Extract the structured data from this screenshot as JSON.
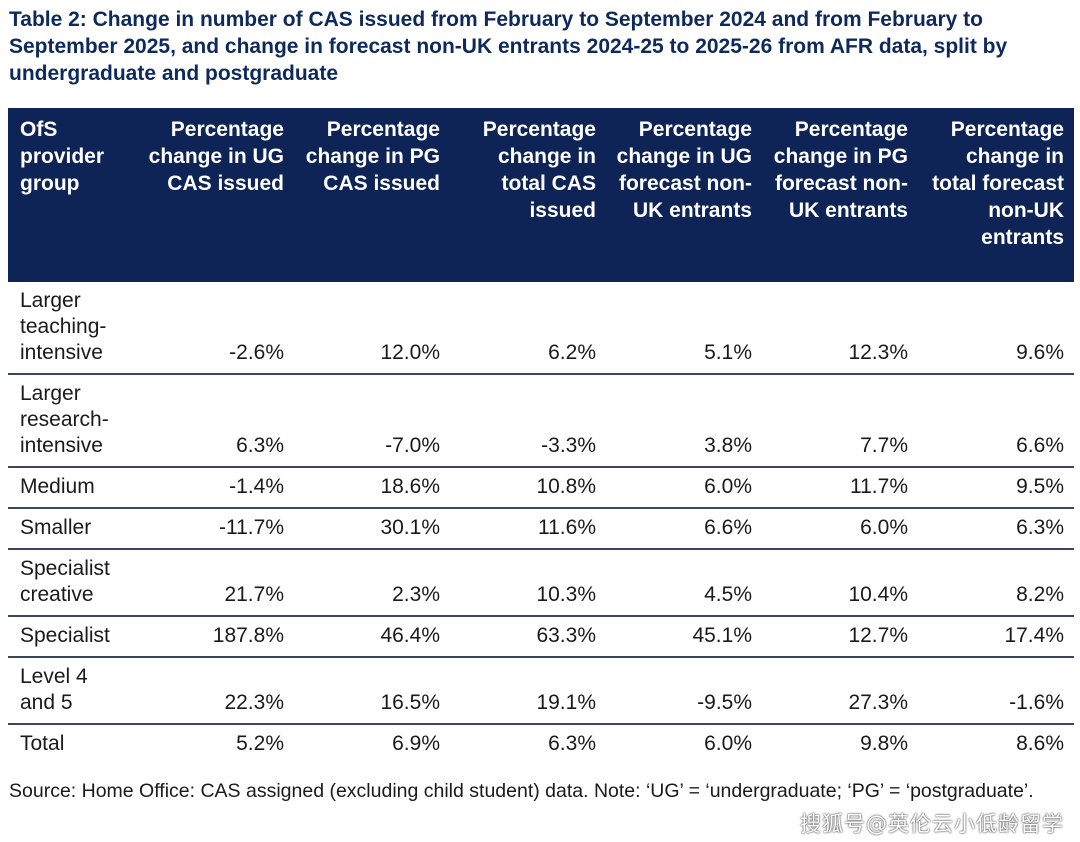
{
  "title": "Table 2: Change in number of CAS issued from February to September 2024 and from February to September 2025, and change in forecast non-UK entrants 2024-25 to 2025-26 from AFR data, split by undergraduate and postgraduate",
  "table": {
    "headers": [
      "OfS provider group",
      "Percentage change in UG CAS issued",
      "Percentage change in PG CAS issued",
      "Percentage change in total CAS issued",
      "Percentage change in UG forecast non-UK entrants",
      "Percentage change in PG forecast non-UK entrants",
      "Percentage change in total forecast non-UK entrants"
    ],
    "rows": [
      {
        "group": "Larger teaching-intensive",
        "values": [
          "-2.6%",
          "12.0%",
          "6.2%",
          "5.1%",
          "12.3%",
          "9.6%"
        ]
      },
      {
        "group": "Larger research-intensive",
        "values": [
          "6.3%",
          "-7.0%",
          "-3.3%",
          "3.8%",
          "7.7%",
          "6.6%"
        ]
      },
      {
        "group": "Medium",
        "values": [
          "-1.4%",
          "18.6%",
          "10.8%",
          "6.0%",
          "11.7%",
          "9.5%"
        ]
      },
      {
        "group": "Smaller",
        "values": [
          "-11.7%",
          "30.1%",
          "11.6%",
          "6.6%",
          "6.0%",
          "6.3%"
        ]
      },
      {
        "group": "Specialist creative",
        "values": [
          "21.7%",
          "2.3%",
          "10.3%",
          "4.5%",
          "10.4%",
          "8.2%"
        ]
      },
      {
        "group": "Specialist",
        "values": [
          "187.8%",
          "46.4%",
          "63.3%",
          "45.1%",
          "12.7%",
          "17.4%"
        ]
      },
      {
        "group": "Level 4 and 5",
        "values": [
          "22.3%",
          "16.5%",
          "19.1%",
          "-9.5%",
          "27.3%",
          "-1.6%"
        ]
      },
      {
        "group": "Total",
        "values": [
          "5.2%",
          "6.9%",
          "6.3%",
          "6.0%",
          "9.8%",
          "8.6%"
        ]
      }
    ]
  },
  "source": "Source: Home Office: CAS assigned (excluding child student) data. Note: ‘UG’ = ‘undergraduate; ‘PG’ = ‘postgraduate’.",
  "watermark": "搜狐号@英伦云小低龄留学",
  "colors": {
    "header_bg": "#0e2456",
    "title": "#0e2a5c"
  }
}
